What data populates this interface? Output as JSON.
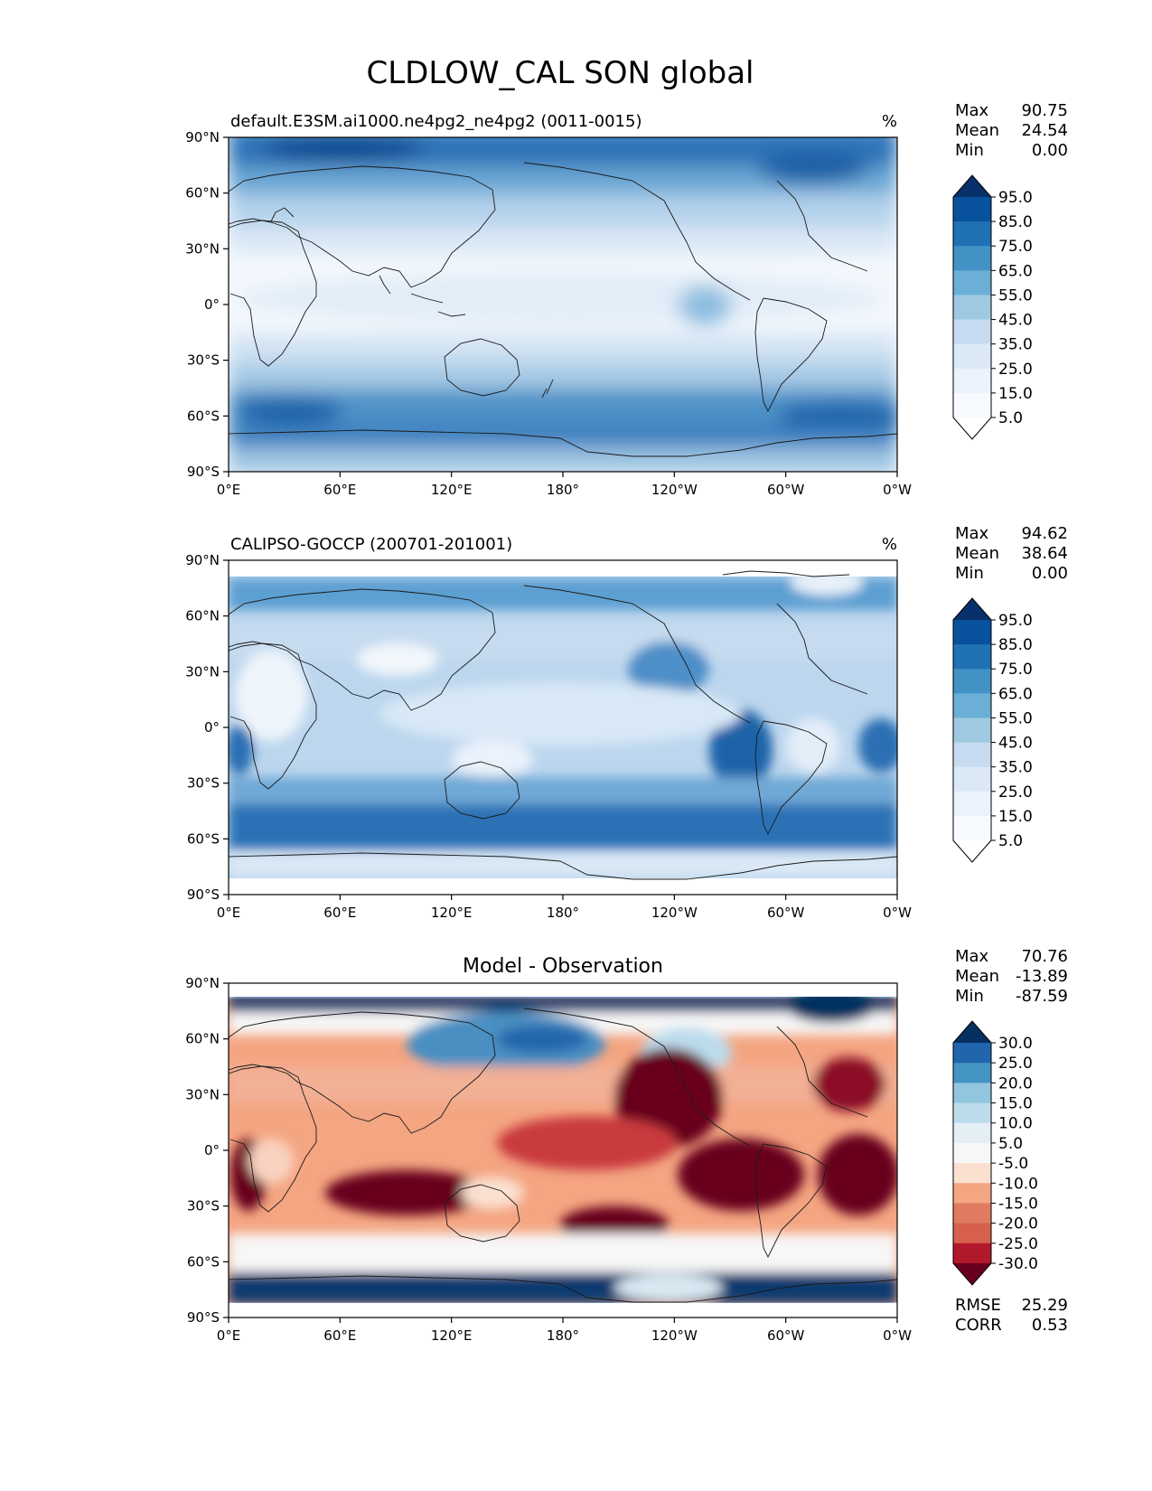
{
  "title": "CLDLOW_CAL SON global",
  "lat_ticks": [
    "90°N",
    "60°N",
    "30°N",
    "0°",
    "30°S",
    "60°S",
    "90°S"
  ],
  "lon_ticks": [
    "0°E",
    "60°E",
    "120°E",
    "180°",
    "120°W",
    "60°W",
    "0°W"
  ],
  "panels": [
    {
      "id": "model",
      "title_left": "default.E3SM.ai1000.ne4pg2_ne4pg2 (0011-0015)",
      "title_center": "",
      "units": "%",
      "stats": [
        {
          "label": "Max",
          "value": "90.75"
        },
        {
          "label": "Mean",
          "value": "24.54"
        },
        {
          "label": "Min",
          "value": "0.00"
        }
      ],
      "colorbar": {
        "labels": [
          "95.0",
          "85.0",
          "75.0",
          "65.0",
          "55.0",
          "45.0",
          "35.0",
          "25.0",
          "15.0",
          "5.0"
        ],
        "colors": [
          "#08306b",
          "#08519c",
          "#2171b5",
          "#4292c6",
          "#6baed6",
          "#9ecae1",
          "#c6dbef",
          "#dbe9f6",
          "#eaf2fb",
          "#f7fbff",
          "#ffffff"
        ]
      },
      "metrics": []
    },
    {
      "id": "obs",
      "title_left": "CALIPSO-GOCCP (200701-201001)",
      "title_center": "",
      "units": "%",
      "stats": [
        {
          "label": "Max",
          "value": "94.62"
        },
        {
          "label": "Mean",
          "value": "38.64"
        },
        {
          "label": "Min",
          "value": "0.00"
        }
      ],
      "colorbar": {
        "labels": [
          "95.0",
          "85.0",
          "75.0",
          "65.0",
          "55.0",
          "45.0",
          "35.0",
          "25.0",
          "15.0",
          "5.0"
        ],
        "colors": [
          "#08306b",
          "#08519c",
          "#2171b5",
          "#4292c6",
          "#6baed6",
          "#9ecae1",
          "#c6dbef",
          "#dbe9f6",
          "#eaf2fb",
          "#f7fbff",
          "#ffffff"
        ]
      },
      "metrics": []
    },
    {
      "id": "diff",
      "title_left": "",
      "title_center": "Model - Observation",
      "units": "",
      "stats": [
        {
          "label": "Max",
          "value": "70.76"
        },
        {
          "label": "Mean",
          "value": "-13.89"
        },
        {
          "label": "Min",
          "value": "-87.59"
        }
      ],
      "colorbar": {
        "labels": [
          "30.0",
          "25.0",
          "20.0",
          "15.0",
          "10.0",
          "5.0",
          "-5.0",
          "-10.0",
          "-15.0",
          "-20.0",
          "-25.0",
          "-30.0"
        ],
        "colors": [
          "#053061",
          "#2166ac",
          "#4393c3",
          "#92c5de",
          "#bcdcec",
          "#e3eef5",
          "#f7f7f7",
          "#fbe0d0",
          "#f4a582",
          "#e07b62",
          "#d6604d",
          "#b2182b",
          "#67001f"
        ]
      },
      "metrics": [
        {
          "label": "RMSE",
          "value": "25.29"
        },
        {
          "label": "CORR",
          "value": "0.53"
        }
      ]
    }
  ]
}
